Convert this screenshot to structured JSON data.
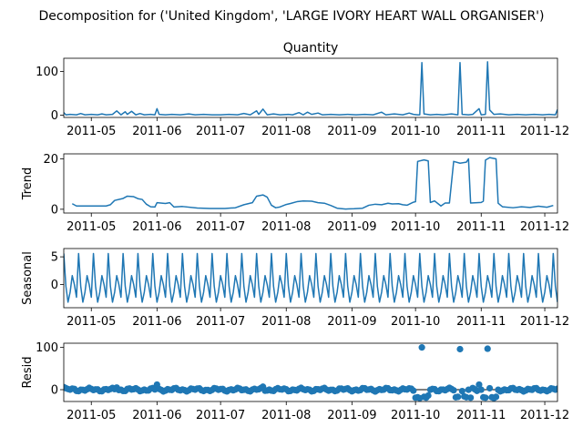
{
  "chart_data": {
    "type": "line",
    "suptitle": "Decomposition for ('United Kingdom', 'LARGE IVORY HEART WALL ORGANISER')",
    "x_range": [
      "2011-04-18",
      "2011-12-07"
    ],
    "x_tick_labels": [
      "2011-05",
      "2011-06",
      "2011-07",
      "2011-08",
      "2011-09",
      "2011-10",
      "2011-11",
      "2011-12"
    ],
    "panels": [
      {
        "id": "observed",
        "title": "Quantity",
        "ylabel": "",
        "ylim": [
          -5,
          130
        ],
        "yticks": [
          0,
          100
        ],
        "kind": "line",
        "points": [
          [
            "2011-04-18",
            6
          ],
          [
            "2011-04-19",
            1
          ],
          [
            "2011-04-21",
            2
          ],
          [
            "2011-04-24",
            1
          ],
          [
            "2011-04-26",
            4
          ],
          [
            "2011-04-28",
            1
          ],
          [
            "2011-05-01",
            2
          ],
          [
            "2011-05-04",
            1
          ],
          [
            "2011-05-06",
            3
          ],
          [
            "2011-05-08",
            1
          ],
          [
            "2011-05-11",
            2
          ],
          [
            "2011-05-13",
            10
          ],
          [
            "2011-05-15",
            1
          ],
          [
            "2011-05-17",
            8
          ],
          [
            "2011-05-18",
            2
          ],
          [
            "2011-05-20",
            9
          ],
          [
            "2011-05-22",
            1
          ],
          [
            "2011-05-24",
            4
          ],
          [
            "2011-05-26",
            1
          ],
          [
            "2011-05-29",
            2
          ],
          [
            "2011-05-31",
            1
          ],
          [
            "2011-06-01",
            15
          ],
          [
            "2011-06-02",
            2
          ],
          [
            "2011-06-05",
            1
          ],
          [
            "2011-06-08",
            2
          ],
          [
            "2011-06-12",
            1
          ],
          [
            "2011-06-16",
            3
          ],
          [
            "2011-06-19",
            1
          ],
          [
            "2011-06-23",
            2
          ],
          [
            "2011-06-27",
            1
          ],
          [
            "2011-07-01",
            1
          ],
          [
            "2011-07-05",
            2
          ],
          [
            "2011-07-09",
            1
          ],
          [
            "2011-07-12",
            4
          ],
          [
            "2011-07-15",
            1
          ],
          [
            "2011-07-18",
            10
          ],
          [
            "2011-07-19",
            2
          ],
          [
            "2011-07-21",
            14
          ],
          [
            "2011-07-23",
            1
          ],
          [
            "2011-07-26",
            3
          ],
          [
            "2011-07-29",
            1
          ],
          [
            "2011-08-02",
            2
          ],
          [
            "2011-08-04",
            1
          ],
          [
            "2011-08-07",
            6
          ],
          [
            "2011-08-09",
            1
          ],
          [
            "2011-08-11",
            7
          ],
          [
            "2011-08-13",
            2
          ],
          [
            "2011-08-16",
            5
          ],
          [
            "2011-08-18",
            1
          ],
          [
            "2011-08-22",
            2
          ],
          [
            "2011-08-26",
            1
          ],
          [
            "2011-08-30",
            2
          ],
          [
            "2011-09-03",
            1
          ],
          [
            "2011-09-07",
            2
          ],
          [
            "2011-09-11",
            1
          ],
          [
            "2011-09-15",
            7
          ],
          [
            "2011-09-17",
            1
          ],
          [
            "2011-09-21",
            3
          ],
          [
            "2011-09-25",
            1
          ],
          [
            "2011-09-28",
            5
          ],
          [
            "2011-09-30",
            2
          ],
          [
            "2011-10-02",
            1
          ],
          [
            "2011-10-03",
            1
          ],
          [
            "2011-10-04",
            120
          ],
          [
            "2011-10-05",
            3
          ],
          [
            "2011-10-08",
            1
          ],
          [
            "2011-10-11",
            2
          ],
          [
            "2011-10-14",
            1
          ],
          [
            "2011-10-18",
            3
          ],
          [
            "2011-10-21",
            1
          ],
          [
            "2011-10-22",
            120
          ],
          [
            "2011-10-23",
            2
          ],
          [
            "2011-10-26",
            1
          ],
          [
            "2011-10-28",
            2
          ],
          [
            "2011-10-31",
            15
          ],
          [
            "2011-11-01",
            1
          ],
          [
            "2011-11-03",
            2
          ],
          [
            "2011-11-04",
            122
          ],
          [
            "2011-11-05",
            12
          ],
          [
            "2011-11-07",
            2
          ],
          [
            "2011-11-10",
            3
          ],
          [
            "2011-11-14",
            1
          ],
          [
            "2011-11-18",
            2
          ],
          [
            "2011-11-22",
            1
          ],
          [
            "2011-11-26",
            2
          ],
          [
            "2011-11-30",
            1
          ],
          [
            "2011-12-03",
            2
          ],
          [
            "2011-12-06",
            1
          ],
          [
            "2011-12-07",
            13
          ]
        ]
      },
      {
        "id": "trend",
        "title": "",
        "ylabel": "Trend",
        "ylim": [
          -1.5,
          22
        ],
        "yticks": [
          0,
          20
        ],
        "kind": "line",
        "points": [
          [
            "2011-04-22",
            2.2
          ],
          [
            "2011-04-24",
            1.3
          ],
          [
            "2011-05-08",
            1.3
          ],
          [
            "2011-05-10",
            1.8
          ],
          [
            "2011-05-12",
            3.5
          ],
          [
            "2011-05-16",
            4.3
          ],
          [
            "2011-05-18",
            5.2
          ],
          [
            "2011-05-21",
            5.0
          ],
          [
            "2011-05-23",
            4.2
          ],
          [
            "2011-05-25",
            3.9
          ],
          [
            "2011-05-27",
            2.0
          ],
          [
            "2011-05-29",
            1.0
          ],
          [
            "2011-05-31",
            0.9
          ],
          [
            "2011-06-01",
            2.6
          ],
          [
            "2011-06-05",
            2.3
          ],
          [
            "2011-06-07",
            2.6
          ],
          [
            "2011-06-09",
            0.9
          ],
          [
            "2011-06-13",
            1.1
          ],
          [
            "2011-06-20",
            0.5
          ],
          [
            "2011-06-26",
            0.3
          ],
          [
            "2011-07-03",
            0.3
          ],
          [
            "2011-07-08",
            0.6
          ],
          [
            "2011-07-12",
            1.8
          ],
          [
            "2011-07-16",
            2.6
          ],
          [
            "2011-07-18",
            5.2
          ],
          [
            "2011-07-21",
            5.7
          ],
          [
            "2011-07-23",
            4.8
          ],
          [
            "2011-07-25",
            1.6
          ],
          [
            "2011-07-27",
            0.6
          ],
          [
            "2011-07-29",
            0.9
          ],
          [
            "2011-08-01",
            1.9
          ],
          [
            "2011-08-03",
            2.3
          ],
          [
            "2011-08-06",
            3.0
          ],
          [
            "2011-08-09",
            3.3
          ],
          [
            "2011-08-13",
            3.2
          ],
          [
            "2011-08-16",
            2.6
          ],
          [
            "2011-08-19",
            2.4
          ],
          [
            "2011-08-22",
            1.5
          ],
          [
            "2011-08-25",
            0.4
          ],
          [
            "2011-08-29",
            0.1
          ],
          [
            "2011-09-02",
            0.2
          ],
          [
            "2011-09-06",
            0.4
          ],
          [
            "2011-09-09",
            1.6
          ],
          [
            "2011-09-12",
            2.0
          ],
          [
            "2011-09-15",
            1.8
          ],
          [
            "2011-09-18",
            2.4
          ],
          [
            "2011-09-20",
            2.1
          ],
          [
            "2011-09-23",
            2.2
          ],
          [
            "2011-09-25",
            1.8
          ],
          [
            "2011-09-27",
            1.6
          ],
          [
            "2011-09-30",
            2.8
          ],
          [
            "2011-10-01",
            3.0
          ],
          [
            "2011-10-02",
            19.0
          ],
          [
            "2011-10-05",
            19.6
          ],
          [
            "2011-10-07",
            19.2
          ],
          [
            "2011-10-08",
            2.7
          ],
          [
            "2011-10-10",
            3.3
          ],
          [
            "2011-10-13",
            1.3
          ],
          [
            "2011-10-15",
            2.5
          ],
          [
            "2011-10-17",
            2.5
          ],
          [
            "2011-10-19",
            19.0
          ],
          [
            "2011-10-22",
            18.3
          ],
          [
            "2011-10-25",
            18.7
          ],
          [
            "2011-10-26",
            20.0
          ],
          [
            "2011-10-27",
            2.5
          ],
          [
            "2011-11-01",
            2.7
          ],
          [
            "2011-11-02",
            3.2
          ],
          [
            "2011-11-03",
            19.5
          ],
          [
            "2011-11-05",
            20.5
          ],
          [
            "2011-11-08",
            20.0
          ],
          [
            "2011-11-09",
            2.4
          ],
          [
            "2011-11-11",
            1.0
          ],
          [
            "2011-11-16",
            0.6
          ],
          [
            "2011-11-20",
            1.0
          ],
          [
            "2011-11-24",
            0.7
          ],
          [
            "2011-11-28",
            1.2
          ],
          [
            "2011-12-02",
            0.8
          ],
          [
            "2011-12-05",
            1.5
          ]
        ]
      },
      {
        "id": "seasonal",
        "title": "",
        "ylabel": "Seasonal",
        "ylim": [
          -4.2,
          6.5
        ],
        "yticks": [
          0,
          5
        ],
        "kind": "periodic",
        "period_days": 7,
        "pattern": [
          5.6,
          -0.3,
          -3.2,
          -1.4,
          1.6,
          0.0,
          -2.3
        ]
      },
      {
        "id": "resid",
        "title": "",
        "ylabel": "Resid",
        "ylim": [
          -28,
          110
        ],
        "yticks": [
          0,
          100
        ],
        "kind": "scatter",
        "baseline": 0,
        "outliers": [
          [
            "2011-10-04",
            100
          ],
          [
            "2011-10-22",
            96
          ],
          [
            "2011-11-04",
            97
          ],
          [
            "2011-10-31",
            12
          ],
          [
            "2011-10-01",
            -19
          ],
          [
            "2011-10-02",
            -18
          ],
          [
            "2011-10-03",
            -20
          ],
          [
            "2011-10-05",
            -17
          ],
          [
            "2011-10-06",
            -19
          ],
          [
            "2011-10-07",
            -14
          ],
          [
            "2011-10-20",
            -18
          ],
          [
            "2011-10-21",
            -17
          ],
          [
            "2011-10-24",
            -16
          ],
          [
            "2011-10-25",
            -18
          ],
          [
            "2011-10-27",
            -19
          ],
          [
            "2011-11-02",
            -18
          ],
          [
            "2011-11-03",
            -19
          ],
          [
            "2011-11-06",
            -18
          ],
          [
            "2011-11-07",
            -20
          ],
          [
            "2011-11-08",
            -17
          ],
          [
            "2011-06-01",
            12
          ],
          [
            "2011-07-21",
            7
          ],
          [
            "2011-05-13",
            5
          ],
          [
            "2011-04-18",
            6
          ]
        ]
      }
    ]
  },
  "colors": {
    "series": "#1f77b4",
    "axis": "#000000"
  }
}
